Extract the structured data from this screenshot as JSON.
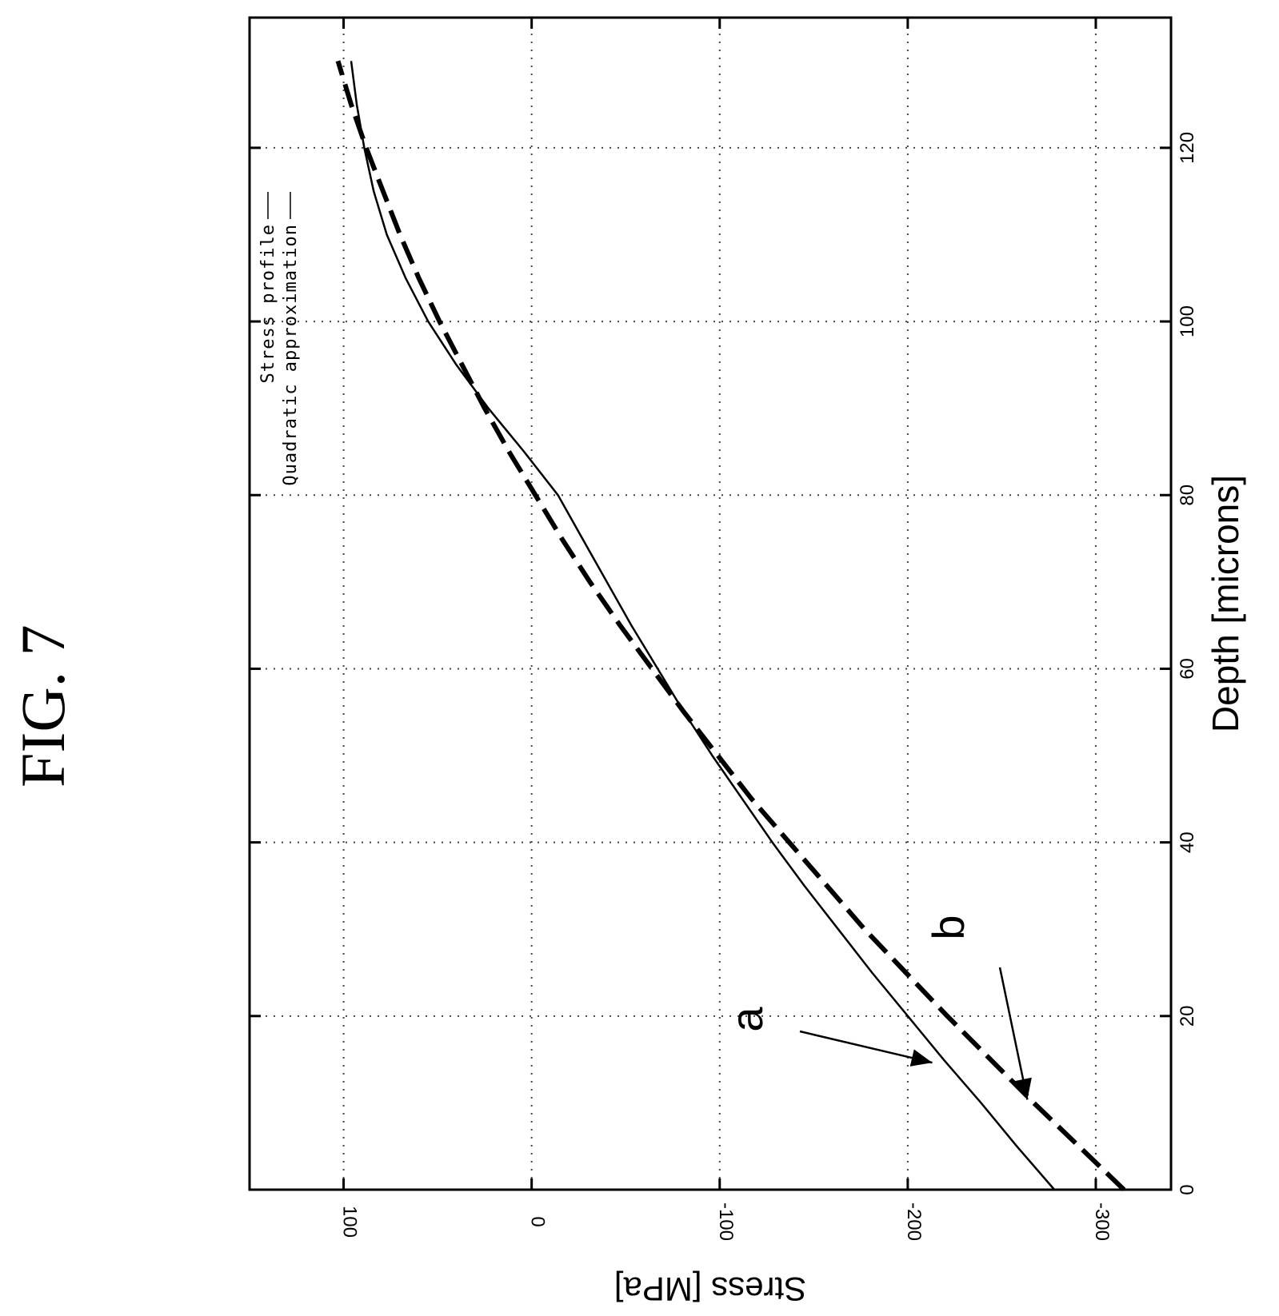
{
  "figure_label": "FIG. 7",
  "chart_data": {
    "type": "line",
    "title": "",
    "xlabel": "Depth [microns]",
    "ylabel": "Stress [MPa]",
    "xlim": [
      0,
      135
    ],
    "ylim": [
      -340,
      150
    ],
    "x_ticks": [
      0,
      20,
      40,
      60,
      80,
      100,
      120
    ],
    "y_ticks": [
      100,
      0,
      -100,
      -200,
      -300
    ],
    "x_tick_labels": [
      "0",
      "20",
      "40",
      "60",
      "80",
      "100",
      "120"
    ],
    "y_tick_labels": [
      "100",
      "0",
      "-100",
      "-200",
      "-300"
    ],
    "grid": true,
    "orientation": "rotated 90 degrees on page",
    "legend": {
      "placement": "top-right",
      "entries": [
        "Stress profile",
        "Quadratic approximation"
      ]
    },
    "annotations": [
      {
        "label": "a",
        "target_series": "Stress profile"
      },
      {
        "label": "b",
        "target_series": "Quadratic approximation"
      }
    ],
    "series": [
      {
        "name": "Stress profile",
        "style": "solid",
        "x": [
          0,
          5,
          10,
          15,
          20,
          25,
          30,
          35,
          40,
          45,
          50,
          55,
          60,
          65,
          70,
          75,
          80,
          85,
          90,
          95,
          100,
          105,
          110,
          115,
          120,
          125,
          130
        ],
        "y": [
          -278,
          -258,
          -239,
          -219,
          -200,
          -181,
          -163,
          -145,
          -128,
          -112,
          -96,
          -81,
          -67,
          -53,
          -40,
          -27,
          -14,
          4,
          23,
          40,
          55,
          67,
          77,
          84,
          89,
          93,
          96
        ]
      },
      {
        "name": "Quadratic approximation",
        "style": "dashed",
        "x": [
          0,
          5,
          10,
          15,
          20,
          25,
          30,
          35,
          40,
          45,
          50,
          55,
          60,
          65,
          70,
          75,
          80,
          85,
          90,
          95,
          100,
          105,
          110,
          115,
          120,
          125,
          130
        ],
        "y": [
          -315,
          -291,
          -267,
          -244,
          -221,
          -199,
          -177,
          -157,
          -137,
          -117,
          -99,
          -81,
          -64,
          -47,
          -31,
          -16,
          -2,
          12,
          25,
          37,
          49,
          60,
          70,
          79,
          88,
          96,
          103
        ]
      }
    ]
  }
}
